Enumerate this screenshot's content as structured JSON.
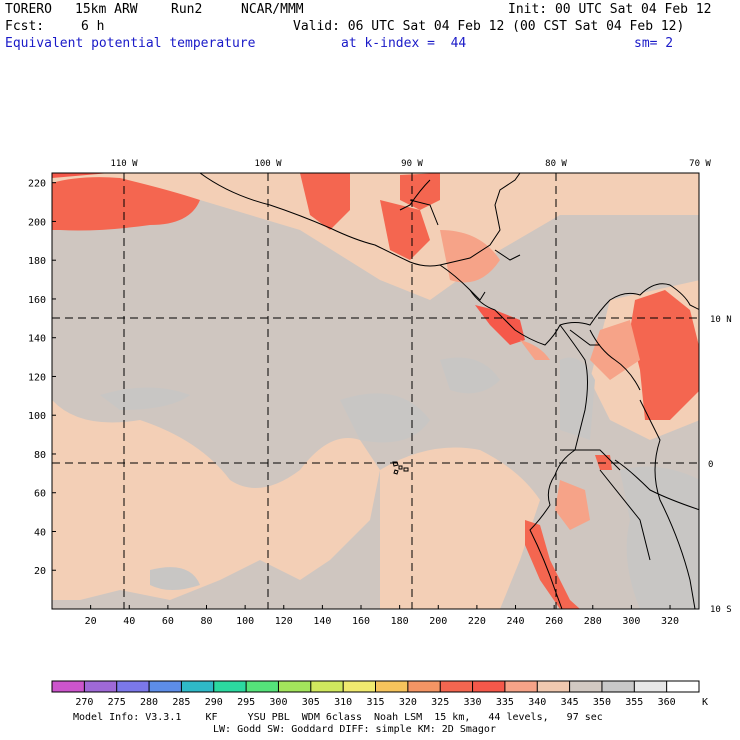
{
  "header": {
    "model": "TORERO",
    "resolution": "15km ARW",
    "run": "Run2",
    "org": "NCAR/MMM",
    "init": "Init: 00 UTC Sat 04 Feb 12",
    "fcst_label": "Fcst:",
    "fcst_value": "6 h",
    "valid": "Valid: 06 UTC Sat 04 Feb 12 (00 CST Sat 04 Feb 12)",
    "field": "Equivalent potential temperature",
    "level": "at k-index =  44",
    "smoothing": "sm= 2"
  },
  "map": {
    "top_lon_labels": [
      "110 W",
      "100 W",
      "90 W",
      "80 W",
      "70 W"
    ],
    "right_lat_labels": [
      "10 N",
      "0",
      "10 S"
    ],
    "left_y_ticks": [
      "20",
      "40",
      "60",
      "80",
      "100",
      "120",
      "140",
      "160",
      "180",
      "200",
      "220"
    ],
    "bottom_x_ticks": [
      "20",
      "40",
      "60",
      "80",
      "100",
      "120",
      "140",
      "160",
      "180",
      "200",
      "220",
      "240",
      "260",
      "280",
      "300",
      "320"
    ]
  },
  "colorbar": {
    "unit": "K",
    "labels": [
      "270",
      "275",
      "280",
      "285",
      "290",
      "295",
      "300",
      "305",
      "310",
      "315",
      "320",
      "325",
      "330",
      "335",
      "340",
      "345",
      "350",
      "355",
      "360"
    ],
    "colors": [
      "#cc55cc",
      "#9f69d6",
      "#7b78ea",
      "#5d8de8",
      "#2fb9c7",
      "#2bd9a0",
      "#55e27a",
      "#a3e55c",
      "#d0e85e",
      "#f0ea6f",
      "#f6c45c",
      "#f49564",
      "#f46650",
      "#f5584a",
      "#f6a388",
      "#f0c9b0",
      "#d2c9c2",
      "#c8c8c8",
      "#e7e7e7",
      "#ffffff"
    ]
  },
  "footer": {
    "line1": "Model Info: V3.3.1    KF     YSU PBL  WDM 6class  Noah LSM  15 km,   44 levels,   97 sec",
    "line2": "LW: Godd SW: Goddard DIFF: simple KM: 2D Smagor"
  }
}
